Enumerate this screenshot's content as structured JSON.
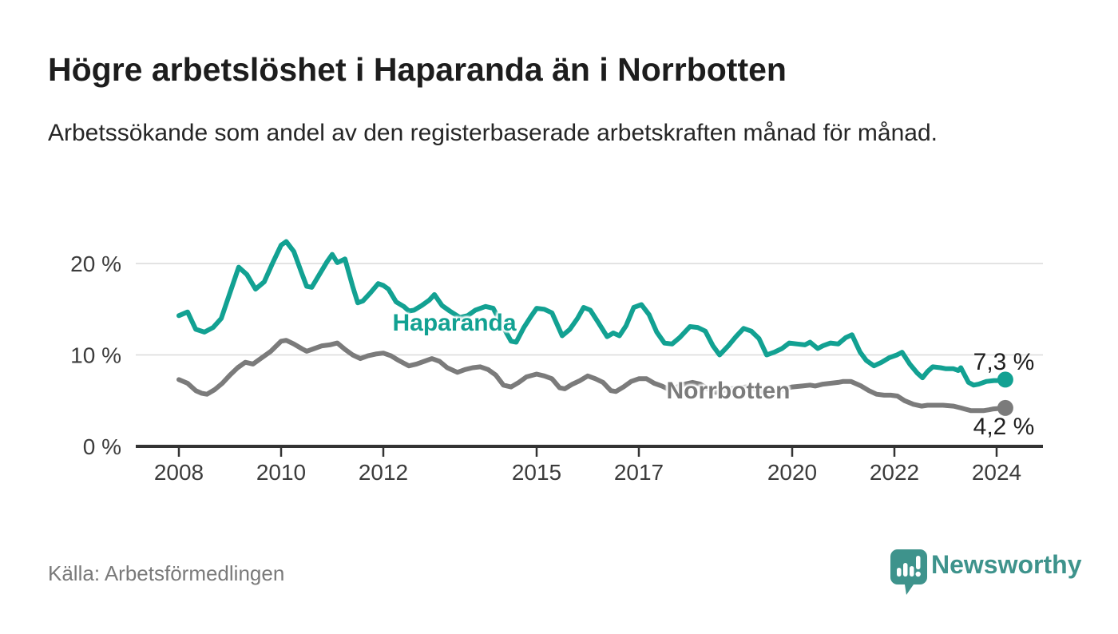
{
  "header": {
    "title": "Högre arbetslöshet i Haparanda än i Norrbotten",
    "subtitle": "Arbetssökande som andel av den registerbaserade arbetskraften månad för månad."
  },
  "chart_data": {
    "type": "line",
    "title": "Högre arbetslöshet i Haparanda än i Norrbotten",
    "xlabel": "",
    "ylabel": "",
    "unit": "%",
    "ylim": [
      0,
      24
    ],
    "yticks": [
      0,
      10,
      20
    ],
    "ytick_labels": [
      "0 %",
      "10 %",
      "20 %"
    ],
    "xticks": [
      2008,
      2010,
      2012,
      2015,
      2017,
      2020,
      2022,
      2024
    ],
    "grid": "horizontal",
    "legend_position": "inline-labels",
    "series": [
      {
        "name": "Haparanda",
        "color": "#12a192",
        "end_label": "7,3 %",
        "end_value": 7.3,
        "points": [
          [
            2008.0,
            14.3
          ],
          [
            2008.17,
            14.7
          ],
          [
            2008.33,
            12.8
          ],
          [
            2008.5,
            12.5
          ],
          [
            2008.67,
            13.0
          ],
          [
            2008.83,
            14.0
          ],
          [
            2009.0,
            16.8
          ],
          [
            2009.17,
            19.6
          ],
          [
            2009.33,
            18.8
          ],
          [
            2009.5,
            17.2
          ],
          [
            2009.67,
            18.0
          ],
          [
            2009.83,
            20.0
          ],
          [
            2010.0,
            22.0
          ],
          [
            2010.1,
            22.4
          ],
          [
            2010.25,
            21.3
          ],
          [
            2010.4,
            19.0
          ],
          [
            2010.5,
            17.5
          ],
          [
            2010.6,
            17.4
          ],
          [
            2010.75,
            18.8
          ],
          [
            2010.9,
            20.2
          ],
          [
            2011.0,
            21.0
          ],
          [
            2011.1,
            20.1
          ],
          [
            2011.25,
            20.5
          ],
          [
            2011.4,
            17.5
          ],
          [
            2011.5,
            15.7
          ],
          [
            2011.6,
            15.9
          ],
          [
            2011.75,
            16.8
          ],
          [
            2011.9,
            17.8
          ],
          [
            2012.0,
            17.6
          ],
          [
            2012.1,
            17.2
          ],
          [
            2012.25,
            15.8
          ],
          [
            2012.4,
            15.3
          ],
          [
            2012.5,
            14.8
          ],
          [
            2012.6,
            14.9
          ],
          [
            2012.75,
            15.4
          ],
          [
            2012.9,
            16.0
          ],
          [
            2013.0,
            16.6
          ],
          [
            2013.15,
            15.4
          ],
          [
            2013.3,
            14.8
          ],
          [
            2013.5,
            14.1
          ],
          [
            2013.65,
            14.3
          ],
          [
            2013.8,
            14.9
          ],
          [
            2014.0,
            15.3
          ],
          [
            2014.15,
            15.1
          ],
          [
            2014.3,
            13.5
          ],
          [
            2014.5,
            11.5
          ],
          [
            2014.6,
            11.4
          ],
          [
            2014.75,
            13.0
          ],
          [
            2014.9,
            14.3
          ],
          [
            2015.0,
            15.1
          ],
          [
            2015.15,
            15.0
          ],
          [
            2015.3,
            14.6
          ],
          [
            2015.5,
            12.1
          ],
          [
            2015.65,
            12.8
          ],
          [
            2015.8,
            14.0
          ],
          [
            2015.92,
            15.2
          ],
          [
            2016.05,
            14.9
          ],
          [
            2016.2,
            13.6
          ],
          [
            2016.38,
            12.0
          ],
          [
            2016.5,
            12.4
          ],
          [
            2016.62,
            12.1
          ],
          [
            2016.75,
            13.2
          ],
          [
            2016.9,
            15.2
          ],
          [
            2017.05,
            15.5
          ],
          [
            2017.2,
            14.4
          ],
          [
            2017.35,
            12.5
          ],
          [
            2017.5,
            11.3
          ],
          [
            2017.65,
            11.2
          ],
          [
            2017.8,
            11.9
          ],
          [
            2018.0,
            13.1
          ],
          [
            2018.15,
            13.0
          ],
          [
            2018.3,
            12.6
          ],
          [
            2018.45,
            11.0
          ],
          [
            2018.58,
            10.0
          ],
          [
            2018.75,
            11.0
          ],
          [
            2018.9,
            12.0
          ],
          [
            2019.05,
            12.9
          ],
          [
            2019.2,
            12.6
          ],
          [
            2019.35,
            11.8
          ],
          [
            2019.5,
            10.0
          ],
          [
            2019.65,
            10.3
          ],
          [
            2019.8,
            10.7
          ],
          [
            2019.94,
            11.3
          ],
          [
            2020.1,
            11.2
          ],
          [
            2020.25,
            11.1
          ],
          [
            2020.35,
            11.4
          ],
          [
            2020.5,
            10.7
          ],
          [
            2020.6,
            11.0
          ],
          [
            2020.75,
            11.3
          ],
          [
            2020.9,
            11.2
          ],
          [
            2021.05,
            11.9
          ],
          [
            2021.17,
            12.2
          ],
          [
            2021.33,
            10.3
          ],
          [
            2021.45,
            9.4
          ],
          [
            2021.6,
            8.8
          ],
          [
            2021.75,
            9.2
          ],
          [
            2021.9,
            9.7
          ],
          [
            2022.05,
            10.0
          ],
          [
            2022.15,
            10.3
          ],
          [
            2022.3,
            9.0
          ],
          [
            2022.45,
            8.0
          ],
          [
            2022.55,
            7.5
          ],
          [
            2022.65,
            8.2
          ],
          [
            2022.75,
            8.7
          ],
          [
            2022.9,
            8.6
          ],
          [
            2023.0,
            8.5
          ],
          [
            2023.15,
            8.5
          ],
          [
            2023.25,
            8.3
          ],
          [
            2023.3,
            8.6
          ],
          [
            2023.45,
            7.0
          ],
          [
            2023.55,
            6.7
          ],
          [
            2023.65,
            6.8
          ],
          [
            2023.8,
            7.1
          ],
          [
            2023.95,
            7.2
          ],
          [
            2024.1,
            7.2
          ],
          [
            2024.17,
            7.3
          ]
        ]
      },
      {
        "name": "Norrbotten",
        "color": "#7b7b7b",
        "end_label": "4,2 %",
        "end_value": 4.2,
        "points": [
          [
            2008.0,
            7.3
          ],
          [
            2008.17,
            6.9
          ],
          [
            2008.33,
            6.1
          ],
          [
            2008.45,
            5.8
          ],
          [
            2008.55,
            5.7
          ],
          [
            2008.7,
            6.2
          ],
          [
            2008.85,
            6.9
          ],
          [
            2009.0,
            7.8
          ],
          [
            2009.15,
            8.6
          ],
          [
            2009.3,
            9.2
          ],
          [
            2009.45,
            9.0
          ],
          [
            2009.6,
            9.6
          ],
          [
            2009.8,
            10.4
          ],
          [
            2010.0,
            11.5
          ],
          [
            2010.1,
            11.6
          ],
          [
            2010.25,
            11.2
          ],
          [
            2010.4,
            10.7
          ],
          [
            2010.5,
            10.4
          ],
          [
            2010.65,
            10.7
          ],
          [
            2010.8,
            11.0
          ],
          [
            2010.95,
            11.1
          ],
          [
            2011.1,
            11.3
          ],
          [
            2011.25,
            10.6
          ],
          [
            2011.4,
            10.0
          ],
          [
            2011.55,
            9.6
          ],
          [
            2011.7,
            9.9
          ],
          [
            2011.85,
            10.1
          ],
          [
            2012.0,
            10.2
          ],
          [
            2012.15,
            9.9
          ],
          [
            2012.3,
            9.4
          ],
          [
            2012.5,
            8.8
          ],
          [
            2012.65,
            9.0
          ],
          [
            2012.8,
            9.3
          ],
          [
            2012.95,
            9.6
          ],
          [
            2013.1,
            9.3
          ],
          [
            2013.25,
            8.6
          ],
          [
            2013.45,
            8.1
          ],
          [
            2013.6,
            8.4
          ],
          [
            2013.75,
            8.6
          ],
          [
            2013.9,
            8.7
          ],
          [
            2014.05,
            8.4
          ],
          [
            2014.2,
            7.8
          ],
          [
            2014.35,
            6.7
          ],
          [
            2014.5,
            6.5
          ],
          [
            2014.65,
            7.0
          ],
          [
            2014.8,
            7.6
          ],
          [
            2015.0,
            7.9
          ],
          [
            2015.15,
            7.7
          ],
          [
            2015.3,
            7.4
          ],
          [
            2015.45,
            6.4
          ],
          [
            2015.55,
            6.3
          ],
          [
            2015.7,
            6.8
          ],
          [
            2015.85,
            7.2
          ],
          [
            2016.0,
            7.7
          ],
          [
            2016.15,
            7.4
          ],
          [
            2016.3,
            7.0
          ],
          [
            2016.45,
            6.1
          ],
          [
            2016.55,
            6.0
          ],
          [
            2016.7,
            6.5
          ],
          [
            2016.85,
            7.1
          ],
          [
            2017.0,
            7.4
          ],
          [
            2017.15,
            7.4
          ],
          [
            2017.3,
            6.9
          ],
          [
            2017.45,
            6.6
          ],
          [
            2017.6,
            6.2
          ],
          [
            2017.75,
            6.5
          ],
          [
            2017.9,
            6.8
          ],
          [
            2018.05,
            7.0
          ],
          [
            2018.2,
            6.8
          ],
          [
            2018.35,
            6.3
          ],
          [
            2018.5,
            5.9
          ],
          [
            2018.65,
            6.1
          ],
          [
            2018.8,
            6.3
          ],
          [
            2018.95,
            6.4
          ],
          [
            2019.1,
            6.5
          ],
          [
            2019.25,
            6.3
          ],
          [
            2019.4,
            6.0
          ],
          [
            2019.55,
            5.8
          ],
          [
            2019.7,
            6.0
          ],
          [
            2019.85,
            6.3
          ],
          [
            2020.0,
            6.5
          ],
          [
            2020.2,
            6.6
          ],
          [
            2020.35,
            6.7
          ],
          [
            2020.45,
            6.6
          ],
          [
            2020.6,
            6.8
          ],
          [
            2020.75,
            6.9
          ],
          [
            2020.9,
            7.0
          ],
          [
            2021.0,
            7.1
          ],
          [
            2021.15,
            7.1
          ],
          [
            2021.35,
            6.6
          ],
          [
            2021.5,
            6.1
          ],
          [
            2021.65,
            5.7
          ],
          [
            2021.8,
            5.6
          ],
          [
            2021.93,
            5.6
          ],
          [
            2022.06,
            5.5
          ],
          [
            2022.2,
            5.0
          ],
          [
            2022.37,
            4.6
          ],
          [
            2022.53,
            4.4
          ],
          [
            2022.65,
            4.5
          ],
          [
            2022.85,
            4.5
          ],
          [
            2022.95,
            4.5
          ],
          [
            2023.16,
            4.4
          ],
          [
            2023.3,
            4.2
          ],
          [
            2023.37,
            4.1
          ],
          [
            2023.5,
            3.9
          ],
          [
            2023.62,
            3.9
          ],
          [
            2023.74,
            3.9
          ],
          [
            2023.85,
            4.0
          ],
          [
            2023.94,
            4.1
          ],
          [
            2024.05,
            4.15
          ],
          [
            2024.17,
            4.2
          ]
        ]
      }
    ]
  },
  "footer": {
    "source": "Källa: Arbetsförmedlingen",
    "brand": "Newsworthy"
  },
  "colors": {
    "accent_teal": "#12a192",
    "series_gray": "#7b7b7b",
    "brand_teal": "#3e938c",
    "text_dark": "#1d1d1d",
    "text_muted": "#7a7a7a",
    "gridline": "#dadada",
    "axis": "#333333"
  },
  "icons": {
    "brand_icon": "newsworthy-speech-bubble-chart-icon"
  }
}
